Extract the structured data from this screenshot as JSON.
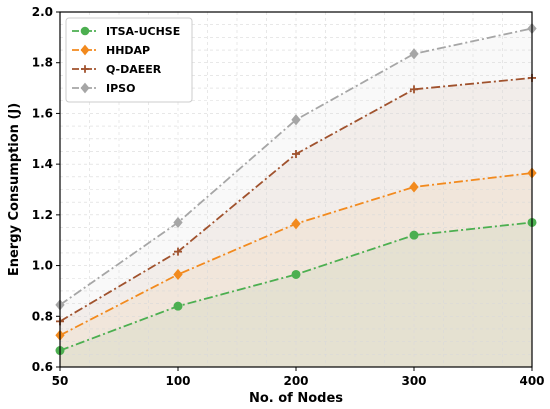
{
  "chart_data": {
    "type": "line",
    "x": [
      50,
      100,
      200,
      300,
      400
    ],
    "x_tick_labels": [
      "50",
      "100",
      "200",
      "300",
      "400"
    ],
    "y_tick_labels": [
      "0.6",
      "0.8",
      "1.0",
      "1.2",
      "1.4",
      "1.6",
      "1.8",
      "2.0"
    ],
    "xlabel": "No. of Nodes",
    "ylabel": "Energy Consumption (J)",
    "ylim": [
      0.6,
      2.0
    ],
    "grid": true,
    "legend_position": "top-left",
    "series": [
      {
        "name": "ITSA-UCHSE",
        "values": [
          0.665,
          0.84,
          0.965,
          1.12,
          1.17
        ],
        "color": "#4caf50",
        "marker": "circle",
        "linestyle": "dash-dot"
      },
      {
        "name": "HHDAP",
        "values": [
          0.725,
          0.965,
          1.165,
          1.31,
          1.365
        ],
        "color": "#f28a1e",
        "marker": "diamond",
        "linestyle": "dash-dot"
      },
      {
        "name": "Q-DAEER",
        "values": [
          0.78,
          1.055,
          1.44,
          1.695,
          1.74
        ],
        "color": "#a0522d",
        "marker": "plus",
        "linestyle": "dash-dot"
      },
      {
        "name": "IPSO",
        "values": [
          0.845,
          1.17,
          1.575,
          1.835,
          1.935
        ],
        "color": "#a6a6a6",
        "marker": "diamond",
        "linestyle": "dash-dot"
      }
    ]
  }
}
